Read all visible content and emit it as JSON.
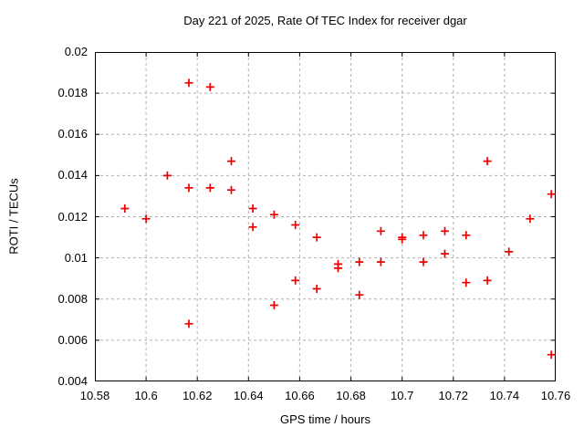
{
  "chart_data": {
    "type": "scatter",
    "title": "Day 221 of 2025, Rate Of TEC Index for receiver dgar",
    "xlabel": "GPS time / hours",
    "ylabel": "ROTI / TECUs",
    "xlim": [
      10.58,
      10.76
    ],
    "ylim": [
      0.004,
      0.02
    ],
    "xticks": {
      "values": [
        10.58,
        10.6,
        10.62,
        10.64,
        10.66,
        10.68,
        10.7,
        10.72,
        10.74,
        10.76
      ],
      "labels": [
        "10.58",
        "10.6",
        "10.62",
        "10.64",
        "10.66",
        "10.68",
        "10.7",
        "10.72",
        "10.74",
        "10.76"
      ]
    },
    "yticks": {
      "values": [
        0.004,
        0.006,
        0.008,
        0.01,
        0.012,
        0.014,
        0.016,
        0.018,
        0.02
      ],
      "labels": [
        "0.004",
        "0.006",
        "0.008",
        "0.01",
        "0.012",
        "0.014",
        "0.016",
        "0.018",
        "0.02"
      ]
    },
    "grid": true,
    "legend_position": "none",
    "marker": {
      "shape": "plus",
      "color": "#ee0000",
      "size": 9
    },
    "colors": {
      "axis": "#000000",
      "grid": "#b0b0b0",
      "background": "#ffffff",
      "text": "#000000"
    },
    "points": [
      [
        10.5917,
        0.0124
      ],
      [
        10.6,
        0.0119
      ],
      [
        10.6083,
        0.014
      ],
      [
        10.6167,
        0.0185
      ],
      [
        10.6167,
        0.0134
      ],
      [
        10.6167,
        0.0068
      ],
      [
        10.625,
        0.0183
      ],
      [
        10.625,
        0.0134
      ],
      [
        10.6333,
        0.0147
      ],
      [
        10.6333,
        0.0133
      ],
      [
        10.6417,
        0.0124
      ],
      [
        10.6417,
        0.0115
      ],
      [
        10.65,
        0.0121
      ],
      [
        10.65,
        0.0077
      ],
      [
        10.6583,
        0.0116
      ],
      [
        10.6583,
        0.0089
      ],
      [
        10.6667,
        0.011
      ],
      [
        10.6667,
        0.0085
      ],
      [
        10.675,
        0.0097
      ],
      [
        10.675,
        0.0095
      ],
      [
        10.6833,
        0.0098
      ],
      [
        10.6833,
        0.0082
      ],
      [
        10.6917,
        0.0113
      ],
      [
        10.6917,
        0.0098
      ],
      [
        10.7,
        0.011
      ],
      [
        10.7,
        0.0109
      ],
      [
        10.7083,
        0.0111
      ],
      [
        10.7083,
        0.0098
      ],
      [
        10.7167,
        0.0113
      ],
      [
        10.7167,
        0.0102
      ],
      [
        10.725,
        0.0111
      ],
      [
        10.725,
        0.0088
      ],
      [
        10.7333,
        0.0147
      ],
      [
        10.7333,
        0.0089
      ],
      [
        10.7417,
        0.0103
      ],
      [
        10.75,
        0.0119
      ],
      [
        10.7583,
        0.0131
      ],
      [
        10.7583,
        0.0053
      ]
    ]
  }
}
